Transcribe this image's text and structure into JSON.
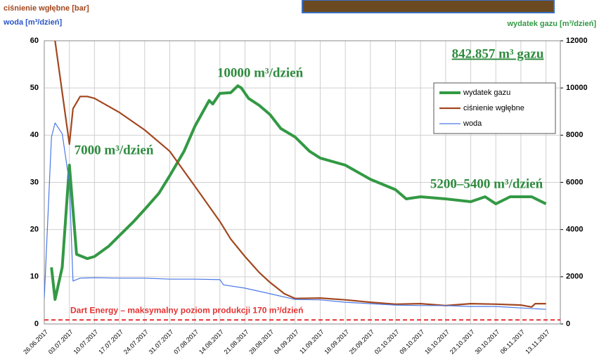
{
  "chart_data": {
    "type": "line",
    "y_label": "ciśnienie wgłębne [bar]",
    "y_label_2": "woda [m³/dzień]",
    "y2_label": "wydatek gazu [m³/dzień]",
    "xlim": [
      "26.06.2017",
      "17.11.2017"
    ],
    "xticks": [
      "26.06.2017",
      "03.07.2017",
      "10.07.2017",
      "17.07.2017",
      "24.07.2017",
      "31.07.2017",
      "07.08.2017",
      "14.08.2017",
      "21.08.2017",
      "28.08.2017",
      "04.09.2017",
      "11.09.2017",
      "18.09.2017",
      "25.09.2017",
      "02.10.2017",
      "09.10.2017",
      "16.10.2017",
      "23.10.2017",
      "30.10.2017",
      "06.11.2017",
      "13.11.2017"
    ],
    "ylim": [
      0,
      60
    ],
    "yticks": [
      0,
      10,
      20,
      30,
      40,
      50,
      60
    ],
    "y2lim": [
      0,
      12000
    ],
    "y2ticks": [
      0,
      2000,
      4000,
      6000,
      8000,
      10000,
      12000
    ],
    "grid": true,
    "legend": "upper right",
    "series": [
      {
        "name": "wydatek gazu",
        "color": "#339944",
        "axis": "y2",
        "x": [
          "28.06.2017",
          "29.06.2017",
          "01.07.2017",
          "03.07.2017",
          "05.07.2017",
          "08.07.2017",
          "10.07.2017",
          "14.07.2017",
          "17.07.2017",
          "21.07.2017",
          "24.07.2017",
          "28.07.2017",
          "31.07.2017",
          "04.08.2017",
          "07.08.2017",
          "11.08.2017",
          "12.08.2017",
          "14.08.2017",
          "17.08.2017",
          "19.08.2017",
          "20.08.2017",
          "22.08.2017",
          "25.08.2017",
          "28.08.2017",
          "31.08.2017",
          "04.09.2017",
          "08.09.2017",
          "11.09.2017",
          "18.09.2017",
          "25.09.2017",
          "02.10.2017",
          "05.10.2017",
          "09.10.2017",
          "16.10.2017",
          "23.10.2017",
          "27.10.2017",
          "30.10.2017",
          "03.11.2017",
          "09.11.2017",
          "13.11.2017"
        ],
        "values": [
          2400,
          1040,
          2400,
          6730,
          2950,
          2770,
          2860,
          3300,
          3750,
          4350,
          4850,
          5540,
          6280,
          7320,
          8370,
          9470,
          9320,
          9770,
          9800,
          10090,
          10000,
          9560,
          9260,
          8870,
          8280,
          7920,
          7320,
          7030,
          6730,
          6130,
          5690,
          5300,
          5390,
          5300,
          5180,
          5390,
          5090,
          5390,
          5390,
          5090
        ]
      },
      {
        "name": "ciśnienie wgłębne",
        "color": "#a2471f",
        "axis": "y",
        "x": [
          "29.06.2017",
          "03.07.2017",
          "04.07.2017",
          "06.07.2017",
          "08.07.2017",
          "10.07.2017",
          "17.07.2017",
          "24.07.2017",
          "31.07.2017",
          "07.08.2017",
          "14.08.2017",
          "17.08.2017",
          "21.08.2017",
          "25.08.2017",
          "28.08.2017",
          "01.09.2017",
          "04.09.2017",
          "11.09.2017",
          "18.09.2017",
          "25.09.2017",
          "02.10.2017",
          "09.10.2017",
          "16.10.2017",
          "23.10.2017",
          "30.10.2017",
          "06.11.2017",
          "09.11.2017",
          "10.11.2017",
          "13.11.2017"
        ],
        "values": [
          60,
          38.1,
          45.6,
          48.2,
          48.2,
          47.8,
          44.8,
          41.1,
          36.6,
          29.2,
          21.7,
          18.0,
          14.3,
          10.9,
          8.8,
          6.4,
          5.4,
          5.5,
          5.1,
          4.6,
          4.2,
          4.3,
          3.9,
          4.3,
          4.2,
          4.0,
          3.6,
          4.3,
          4.3
        ]
      },
      {
        "name": "woda",
        "color": "#4a78e8",
        "axis": "y",
        "x": [
          "26.06.2017",
          "28.06.2017",
          "29.06.2017",
          "01.07.2017",
          "03.07.2017",
          "04.07.2017",
          "06.07.2017",
          "10.07.2017",
          "17.07.2017",
          "24.07.2017",
          "31.07.2017",
          "07.08.2017",
          "14.08.2017",
          "15.08.2017",
          "21.08.2017",
          "28.08.2017",
          "04.09.2017",
          "11.09.2017",
          "18.09.2017",
          "25.09.2017",
          "02.10.2017",
          "09.10.2017",
          "16.10.2017",
          "23.10.2017",
          "30.10.2017",
          "06.11.2017",
          "13.11.2017"
        ],
        "values": [
          5.4,
          39.6,
          42.6,
          40.3,
          29.9,
          9.1,
          9.7,
          9.8,
          9.7,
          9.7,
          9.5,
          9.5,
          9.4,
          8.3,
          7.6,
          6.4,
          5.2,
          5.1,
          4.6,
          4.3,
          4.0,
          3.9,
          3.9,
          3.7,
          3.7,
          3.4,
          3.1
        ]
      }
    ],
    "reference_line": {
      "value": 170,
      "axis": "y2",
      "color": "#e53333",
      "label": "Dart Energy – maksymalny poziom produkcji 170 m³/dzień"
    },
    "annotations": [
      "842.857  m³ gazu",
      "10000 m³/dzień",
      "7000 m³/dzień",
      "5200–5400 m³/dzień"
    ]
  }
}
